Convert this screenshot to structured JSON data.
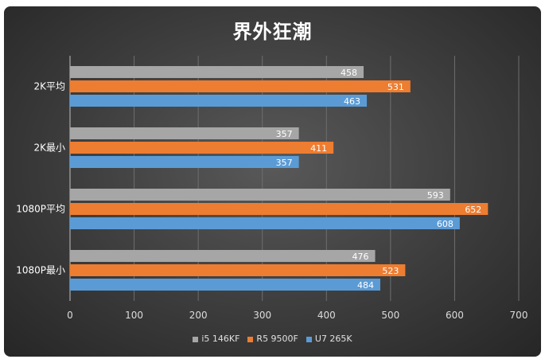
{
  "chart_data": {
    "type": "bar",
    "orientation": "horizontal",
    "title": "界外狂潮",
    "categories": [
      "2K平均",
      "2K最小",
      "1080P平均",
      "1080P最小"
    ],
    "series": [
      {
        "name": "i5 146KF",
        "color": "#a6a6a6",
        "values": [
          458,
          357,
          593,
          476
        ]
      },
      {
        "name": "R5 9500F",
        "color": "#ed7d31",
        "values": [
          531,
          411,
          652,
          523
        ]
      },
      {
        "name": "U7 265K",
        "color": "#5b9bd5",
        "values": [
          463,
          357,
          608,
          484
        ]
      }
    ],
    "xlim": [
      0,
      700
    ],
    "xticks": [
      0,
      100,
      200,
      300,
      400,
      500,
      600,
      700
    ],
    "grid": "vertical",
    "legend_position": "bottom"
  }
}
